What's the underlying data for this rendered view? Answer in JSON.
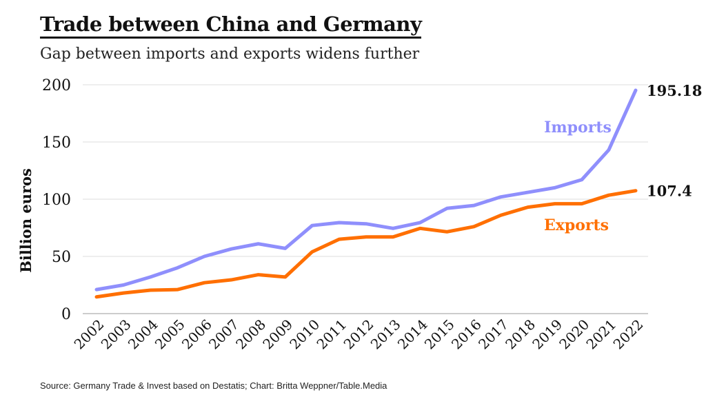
{
  "chart_data": {
    "type": "line",
    "title": "Trade between China and Germany",
    "subtitle": "Gap between imports and exports widens further",
    "ylabel": "Billion euros",
    "xlabel": "",
    "ylim": [
      0,
      200
    ],
    "yticks": [
      "0",
      "50",
      "100",
      "150",
      "200"
    ],
    "grid": true,
    "categories": [
      "2002",
      "2003",
      "2004",
      "2005",
      "2006",
      "2007",
      "2008",
      "2009",
      "2010",
      "2011",
      "2012",
      "2013",
      "2014",
      "2015",
      "2016",
      "2017",
      "2018",
      "2019",
      "2020",
      "2021",
      "2022"
    ],
    "series": [
      {
        "name": "Imports",
        "color": "#8f8ffc",
        "end_label": "195.18",
        "values": [
          21,
          25,
          32,
          40,
          50,
          56.5,
          61,
          57,
          77,
          79.5,
          78.5,
          74.5,
          79.5,
          92,
          94.5,
          102,
          106,
          110,
          117,
          143,
          195.18
        ]
      },
      {
        "name": "Exports",
        "color": "#ff6f00",
        "end_label": "107.4",
        "values": [
          14.6,
          18,
          20.5,
          21,
          27,
          29.5,
          34,
          32,
          54,
          65,
          67,
          67,
          74.5,
          71.5,
          76,
          86,
          93,
          96,
          96,
          103.5,
          107.4
        ]
      }
    ],
    "source": "Source: Germany Trade & Invest based on Destatis; Chart: Britta Weppner/Table.Media"
  }
}
